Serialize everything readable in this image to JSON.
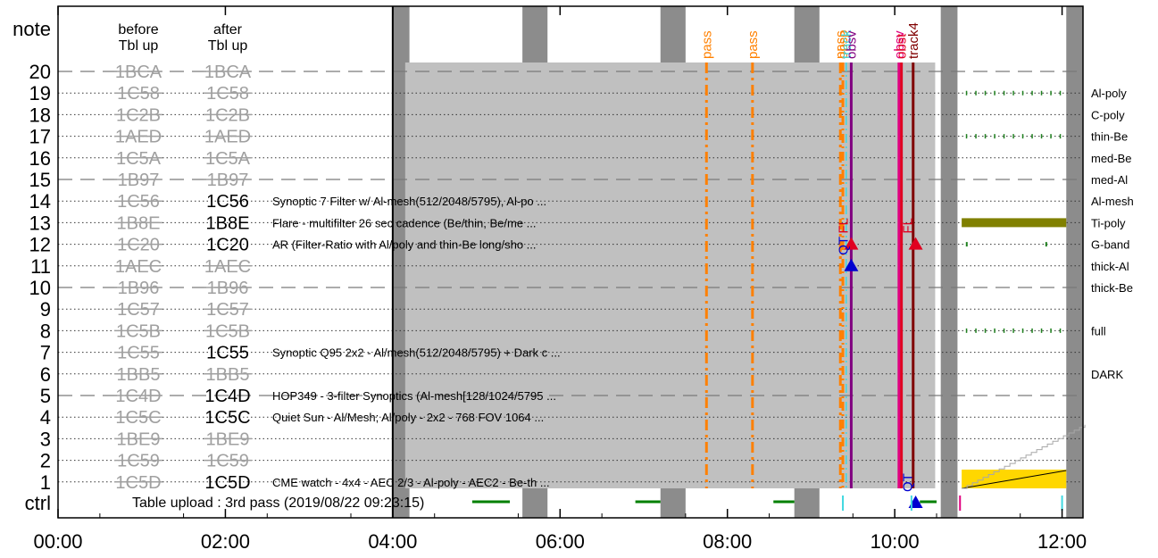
{
  "chart_data": {
    "type": "timeline",
    "colors": {
      "background": "#ffffff",
      "pass_band": "#8c8c8c",
      "table_region": "#c0c0c0",
      "pass_marker": "#ff8000",
      "faded_label": "#a0a0a0",
      "ctrl_green": "#008000",
      "filter_green": "#208020",
      "tipoly_bar": "#808000",
      "yellow_fill": "#ffd700",
      "red": "#e00020",
      "darkred": "#800000",
      "blue": "#0000d0",
      "purple": "#800080",
      "magenta": "#e00080",
      "cyan": "#40d8e0"
    },
    "y_axis_title": "note",
    "x_axis": {
      "min_hours": 0,
      "max_hours": 12.25,
      "ticks": [
        {
          "hour": 0,
          "label": "00:00"
        },
        {
          "hour": 2,
          "label": "02:00"
        },
        {
          "hour": 4,
          "label": "04:00"
        },
        {
          "hour": 6,
          "label": "06:00"
        },
        {
          "hour": 8,
          "label": "08:00"
        },
        {
          "hour": 10,
          "label": "10:00"
        },
        {
          "hour": 12,
          "label": "12:00"
        }
      ]
    },
    "column_headers": [
      {
        "line1": "before",
        "line2": "Tbl up"
      },
      {
        "line1": "after",
        "line2": "Tbl up"
      }
    ],
    "rows": [
      {
        "row": "20",
        "before": "1BCA",
        "after": "1BCA",
        "after_active": false,
        "desc": "",
        "filter": "",
        "dashed": true
      },
      {
        "row": "19",
        "before": "1C58",
        "after": "1C58",
        "after_active": false,
        "desc": "",
        "filter": "Al-poly",
        "dashed": false
      },
      {
        "row": "18",
        "before": "1C2B",
        "after": "1C2B",
        "after_active": false,
        "desc": "",
        "filter": "C-poly",
        "dashed": false
      },
      {
        "row": "17",
        "before": "1AED",
        "after": "1AED",
        "after_active": false,
        "desc": "",
        "filter": "thin-Be",
        "dashed": false
      },
      {
        "row": "16",
        "before": "1C5A",
        "after": "1C5A",
        "after_active": false,
        "desc": "",
        "filter": "med-Be",
        "dashed": false
      },
      {
        "row": "15",
        "before": "1B97",
        "after": "1B97",
        "after_active": false,
        "desc": "",
        "filter": "med-Al",
        "dashed": true
      },
      {
        "row": "14",
        "before": "1C56",
        "after": "1C56",
        "after_active": true,
        "desc": "Synoptic 7 Filter w/ Al-mesh(512/2048/5795), Al-po ...",
        "filter": "Al-mesh",
        "dashed": false
      },
      {
        "row": "13",
        "before": "1B8E",
        "after": "1B8E",
        "after_active": true,
        "desc": "Flare - multifilter 26 sec cadence (Be/thin, Be/me ...",
        "filter": "Ti-poly",
        "dashed": false
      },
      {
        "row": "12",
        "before": "1C20",
        "after": "1C20",
        "after_active": true,
        "desc": "AR (Filter-Ratio with Al/poly and thin-Be long/sho ...",
        "filter": "G-band",
        "dashed": false
      },
      {
        "row": "11",
        "before": "1AEC",
        "after": "1AEC",
        "after_active": false,
        "desc": "",
        "filter": "thick-Al",
        "dashed": false
      },
      {
        "row": "10",
        "before": "1B96",
        "after": "1B96",
        "after_active": false,
        "desc": "",
        "filter": "thick-Be",
        "dashed": true
      },
      {
        "row": "9",
        "before": "1C57",
        "after": "1C57",
        "after_active": false,
        "desc": "",
        "filter": "",
        "dashed": false
      },
      {
        "row": "8",
        "before": "1C5B",
        "after": "1C5B",
        "after_active": false,
        "desc": "",
        "filter": "full",
        "dashed": false
      },
      {
        "row": "7",
        "before": "1C55",
        "after": "1C55",
        "after_active": true,
        "desc": "Synoptic Q95 2x2 - Al/mesh(512/2048/5795) + Dark c ...",
        "filter": "",
        "dashed": false
      },
      {
        "row": "6",
        "before": "1BB5",
        "after": "1BB5",
        "after_active": false,
        "desc": "",
        "filter": "DARK",
        "dashed": false
      },
      {
        "row": "5",
        "before": "1C4D",
        "after": "1C4D",
        "after_active": true,
        "desc": "HOP349 - 3-filter Synoptics (Al-mesh[128/1024/5795 ...",
        "filter": "",
        "dashed": true
      },
      {
        "row": "4",
        "before": "1C5C",
        "after": "1C5C",
        "after_active": true,
        "desc": "Quiet Sun - Al/Mesh; Al/poly - 2x2 - 768 FOV 1064  ...",
        "filter": "",
        "dashed": false
      },
      {
        "row": "3",
        "before": "1BE9",
        "after": "1BE9",
        "after_active": false,
        "desc": "",
        "filter": "",
        "dashed": false
      },
      {
        "row": "2",
        "before": "1C59",
        "after": "1C59",
        "after_active": false,
        "desc": "",
        "filter": "",
        "dashed": false
      },
      {
        "row": "1",
        "before": "1C5D",
        "after": "1C5D",
        "after_active": true,
        "desc": "CME watch - 4x4 - AEC 2/3 - Al-poly - AEC2 - Be-th ...",
        "filter": "",
        "dashed": false
      }
    ],
    "ctrl_label": "ctrl",
    "table_upload_text": "Table upload : 3rd pass (2019/08/22 09:23:15)",
    "table_region_hours": [
      4.0,
      10.75
    ],
    "pass_bands_hours": [
      [
        4.0,
        4.2
      ],
      [
        5.55,
        5.85
      ],
      [
        7.2,
        7.5
      ],
      [
        8.8,
        9.1
      ],
      [
        10.55,
        10.75
      ],
      [
        12.05,
        12.25
      ]
    ],
    "ctrl_green_segments_hours": [
      [
        4.95,
        5.4
      ],
      [
        6.9,
        7.2
      ],
      [
        8.55,
        8.8
      ],
      [
        10.3,
        10.5
      ]
    ],
    "pass_markers": [
      {
        "hour": 7.75,
        "label": "pass"
      },
      {
        "hour": 8.3,
        "label": "pass"
      },
      {
        "hour": 9.35,
        "label": "pass"
      }
    ],
    "vertical_events": [
      {
        "hour": 9.38,
        "label": "obsp",
        "color": "orange",
        "dash": "dashdot"
      },
      {
        "hour": 9.42,
        "label": "track",
        "color": "cyan",
        "dash": "dashdot"
      },
      {
        "hour": 9.48,
        "label": "obsv",
        "color": "purple",
        "dash": "solid"
      },
      {
        "hour": 10.05,
        "label": "obsv",
        "color": "magenta",
        "dash": "solid"
      },
      {
        "hour": 10.08,
        "label": "obst",
        "color": "red",
        "dash": "solid"
      },
      {
        "hour": 10.22,
        "label": "track4",
        "color": "darkred",
        "dash": "solid"
      }
    ],
    "triangles": [
      {
        "hour": 9.48,
        "row": 12,
        "color": "red",
        "label": "FL"
      },
      {
        "hour": 9.48,
        "row": 11,
        "color": "blue",
        "label": "QT"
      },
      {
        "hour": 10.25,
        "row": 12,
        "color": "red",
        "label": "FL"
      },
      {
        "hour": 10.25,
        "row": 0,
        "color": "blue",
        "label": "QT"
      }
    ],
    "ctrl_ticks": [
      {
        "hour": 9.38,
        "color": "cyan"
      },
      {
        "hour": 10.2,
        "color": "cyan"
      },
      {
        "hour": 10.78,
        "color": "magenta"
      },
      {
        "hour": 12.0,
        "color": "cyan"
      }
    ]
  }
}
